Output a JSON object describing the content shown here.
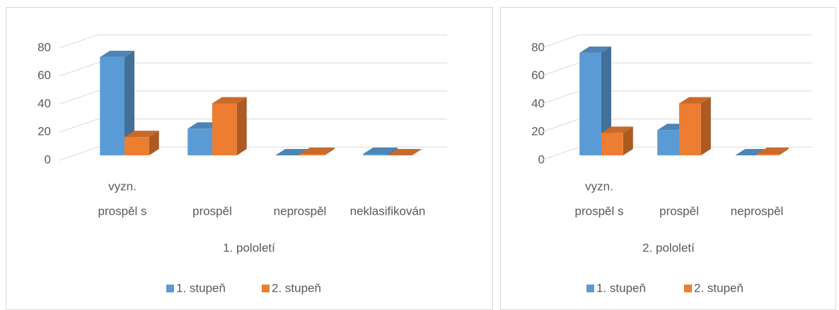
{
  "chart_data": [
    {
      "type": "bar3d",
      "xlabel": "1. pololetí",
      "categories": [
        [
          "vyzn.",
          "prospěl s"
        ],
        "prospěl",
        "neprospěl",
        "neklasifikován"
      ],
      "series": [
        {
          "name": "1. stupeň",
          "color": "#5b9bd5",
          "values": [
            70,
            19,
            0,
            1
          ]
        },
        {
          "name": "2. stupeň",
          "color": "#ed7d31",
          "values": [
            13,
            37,
            1,
            0
          ]
        }
      ],
      "ylim": [
        0,
        80
      ],
      "yticks": [
        0,
        20,
        40,
        60,
        80
      ],
      "grid": true,
      "legend": "bottom"
    },
    {
      "type": "bar3d",
      "xlabel": "2. pololetí",
      "categories": [
        [
          "vyzn.",
          "prospěl s"
        ],
        "prospěl",
        "neprospěl"
      ],
      "series": [
        {
          "name": "1. stupeň",
          "color": "#5b9bd5",
          "values": [
            73,
            18,
            0
          ]
        },
        {
          "name": "2. stupeň",
          "color": "#ed7d31",
          "values": [
            16,
            37,
            1
          ]
        }
      ],
      "ylim": [
        0,
        80
      ],
      "yticks": [
        0,
        20,
        40,
        60,
        80
      ],
      "grid": true,
      "legend": "bottom"
    }
  ]
}
